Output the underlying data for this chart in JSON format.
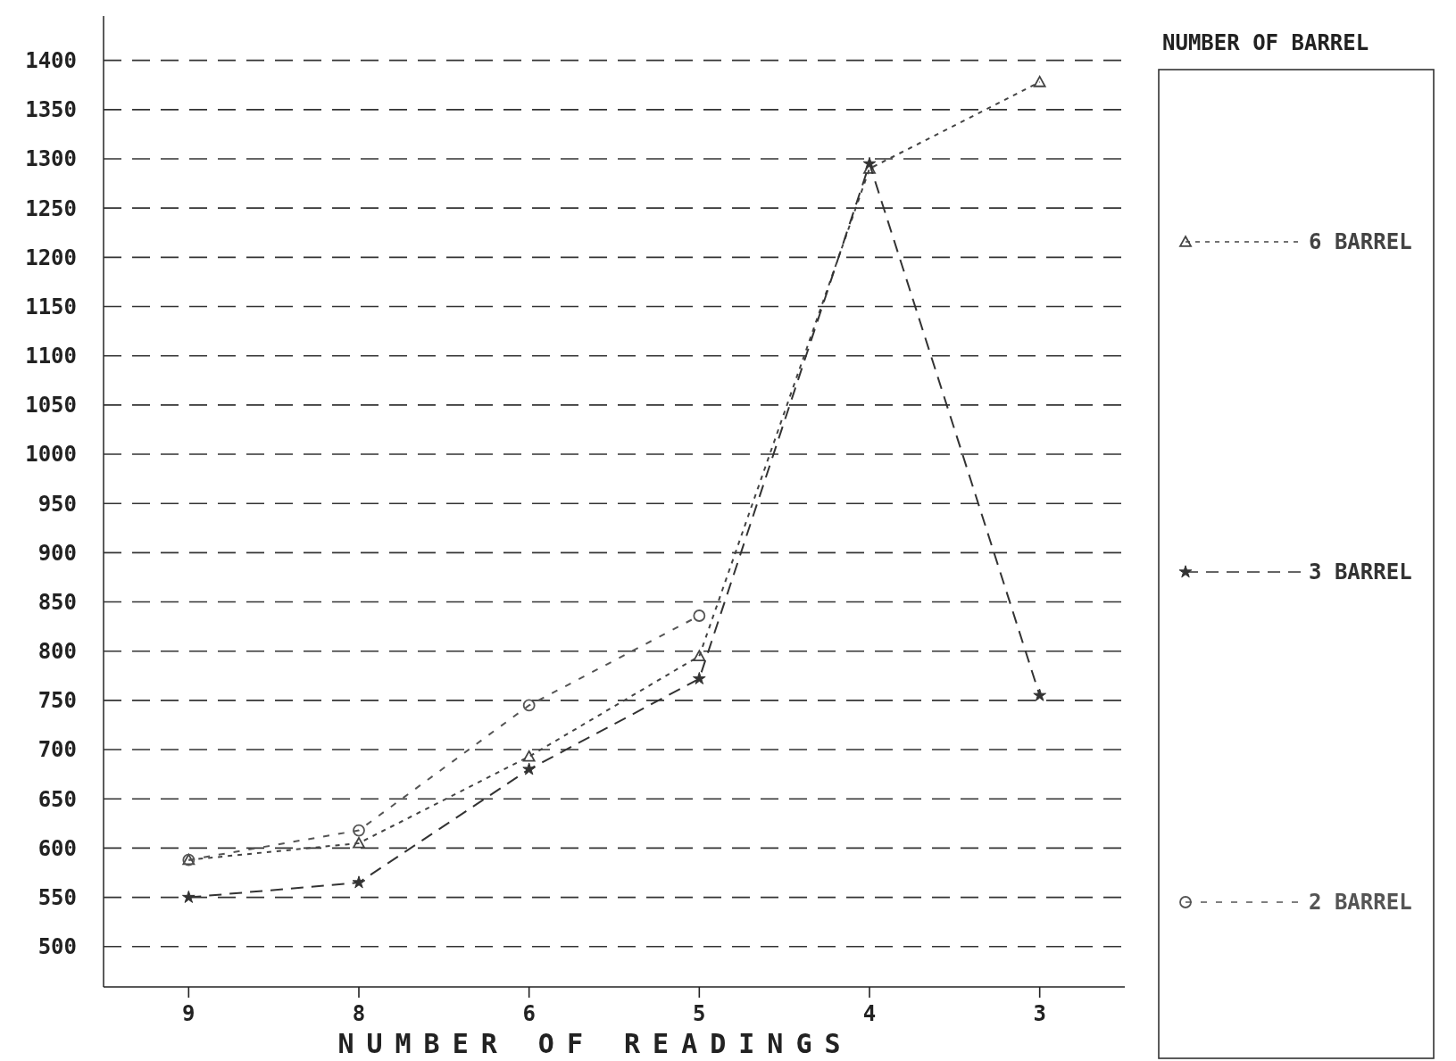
{
  "chart_data": {
    "type": "line",
    "xlabel": "NUMBER OF READINGS",
    "legend_title": "NUMBER OF BARREL",
    "categories": [
      "9",
      "8",
      "6",
      "5",
      "4",
      "3"
    ],
    "ylim": [
      459,
      1445
    ],
    "yticks": [
      500,
      550,
      600,
      650,
      700,
      750,
      800,
      850,
      900,
      950,
      1000,
      1050,
      1100,
      1150,
      1200,
      1250,
      1300,
      1350,
      1400
    ],
    "grid": "y",
    "legend": "right",
    "series": [
      {
        "name": "6 BARREL",
        "color": "#444444",
        "marker": "triangle",
        "line_style": "dotted",
        "values": [
          588,
          605,
          693,
          795,
          1290,
          1378
        ]
      },
      {
        "name": "3 BARREL",
        "color": "#333333",
        "marker": "star",
        "line_style": "dashed",
        "values": [
          550,
          565,
          680,
          772,
          1295,
          755
        ]
      },
      {
        "name": "2 BARREL",
        "color": "#555555",
        "marker": "circle",
        "line_style": "dashdot",
        "values": [
          588,
          618,
          745,
          836,
          null,
          null
        ]
      }
    ]
  }
}
